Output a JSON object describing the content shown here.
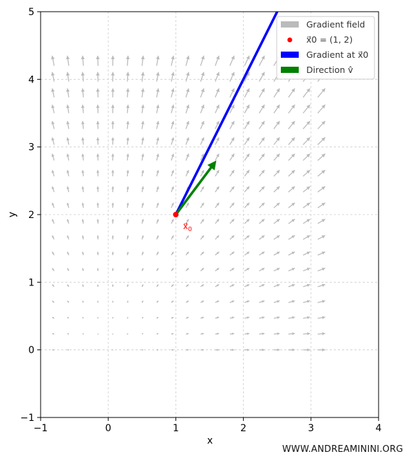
{
  "watermark": "WWW.ANDREAMININI.ORG",
  "chart_data": {
    "type": "quiver",
    "xlabel": "x",
    "ylabel": "y",
    "xlim": [
      -1,
      4
    ],
    "ylim": [
      -1,
      5
    ],
    "x_ticks": [
      -1,
      0,
      1,
      2,
      3,
      4
    ],
    "y_ticks": [
      -1,
      0,
      1,
      2,
      3,
      4,
      5
    ],
    "x_tick_labels": [
      "−1",
      "0",
      "1",
      "2",
      "3",
      "4"
    ],
    "y_tick_labels": [
      "−1",
      "0",
      "1",
      "2",
      "3",
      "4",
      "5"
    ],
    "grid": true,
    "legend_position": "top-right",
    "legend": [
      {
        "label": "Gradient field",
        "color": "#bbbbbb",
        "kind": "patch"
      },
      {
        "label": "x⃗0 = (1, 2)",
        "color": "#ff0000",
        "kind": "point"
      },
      {
        "label": "Gradient at x⃗0",
        "color": "#0000ff",
        "kind": "patch"
      },
      {
        "label": "Direction v̂",
        "color": "#008000",
        "kind": "patch"
      }
    ],
    "field": {
      "color": "#bbbbbb",
      "grid_x_range": [
        -0.8,
        3.1
      ],
      "grid_y_range": [
        0,
        4.2
      ],
      "grid_count": 19,
      "vector_fn": "(2x, 2y)"
    },
    "point": {
      "x": 1,
      "y": 2,
      "label": "x⃗0",
      "color": "#ff0000"
    },
    "gradient_vector": {
      "start": [
        1,
        2
      ],
      "end": [
        2.5,
        5
      ],
      "color": "#0000ff"
    },
    "direction_vector": {
      "start": [
        1,
        2
      ],
      "end": [
        1.6,
        2.8
      ],
      "color": "#008000"
    }
  }
}
